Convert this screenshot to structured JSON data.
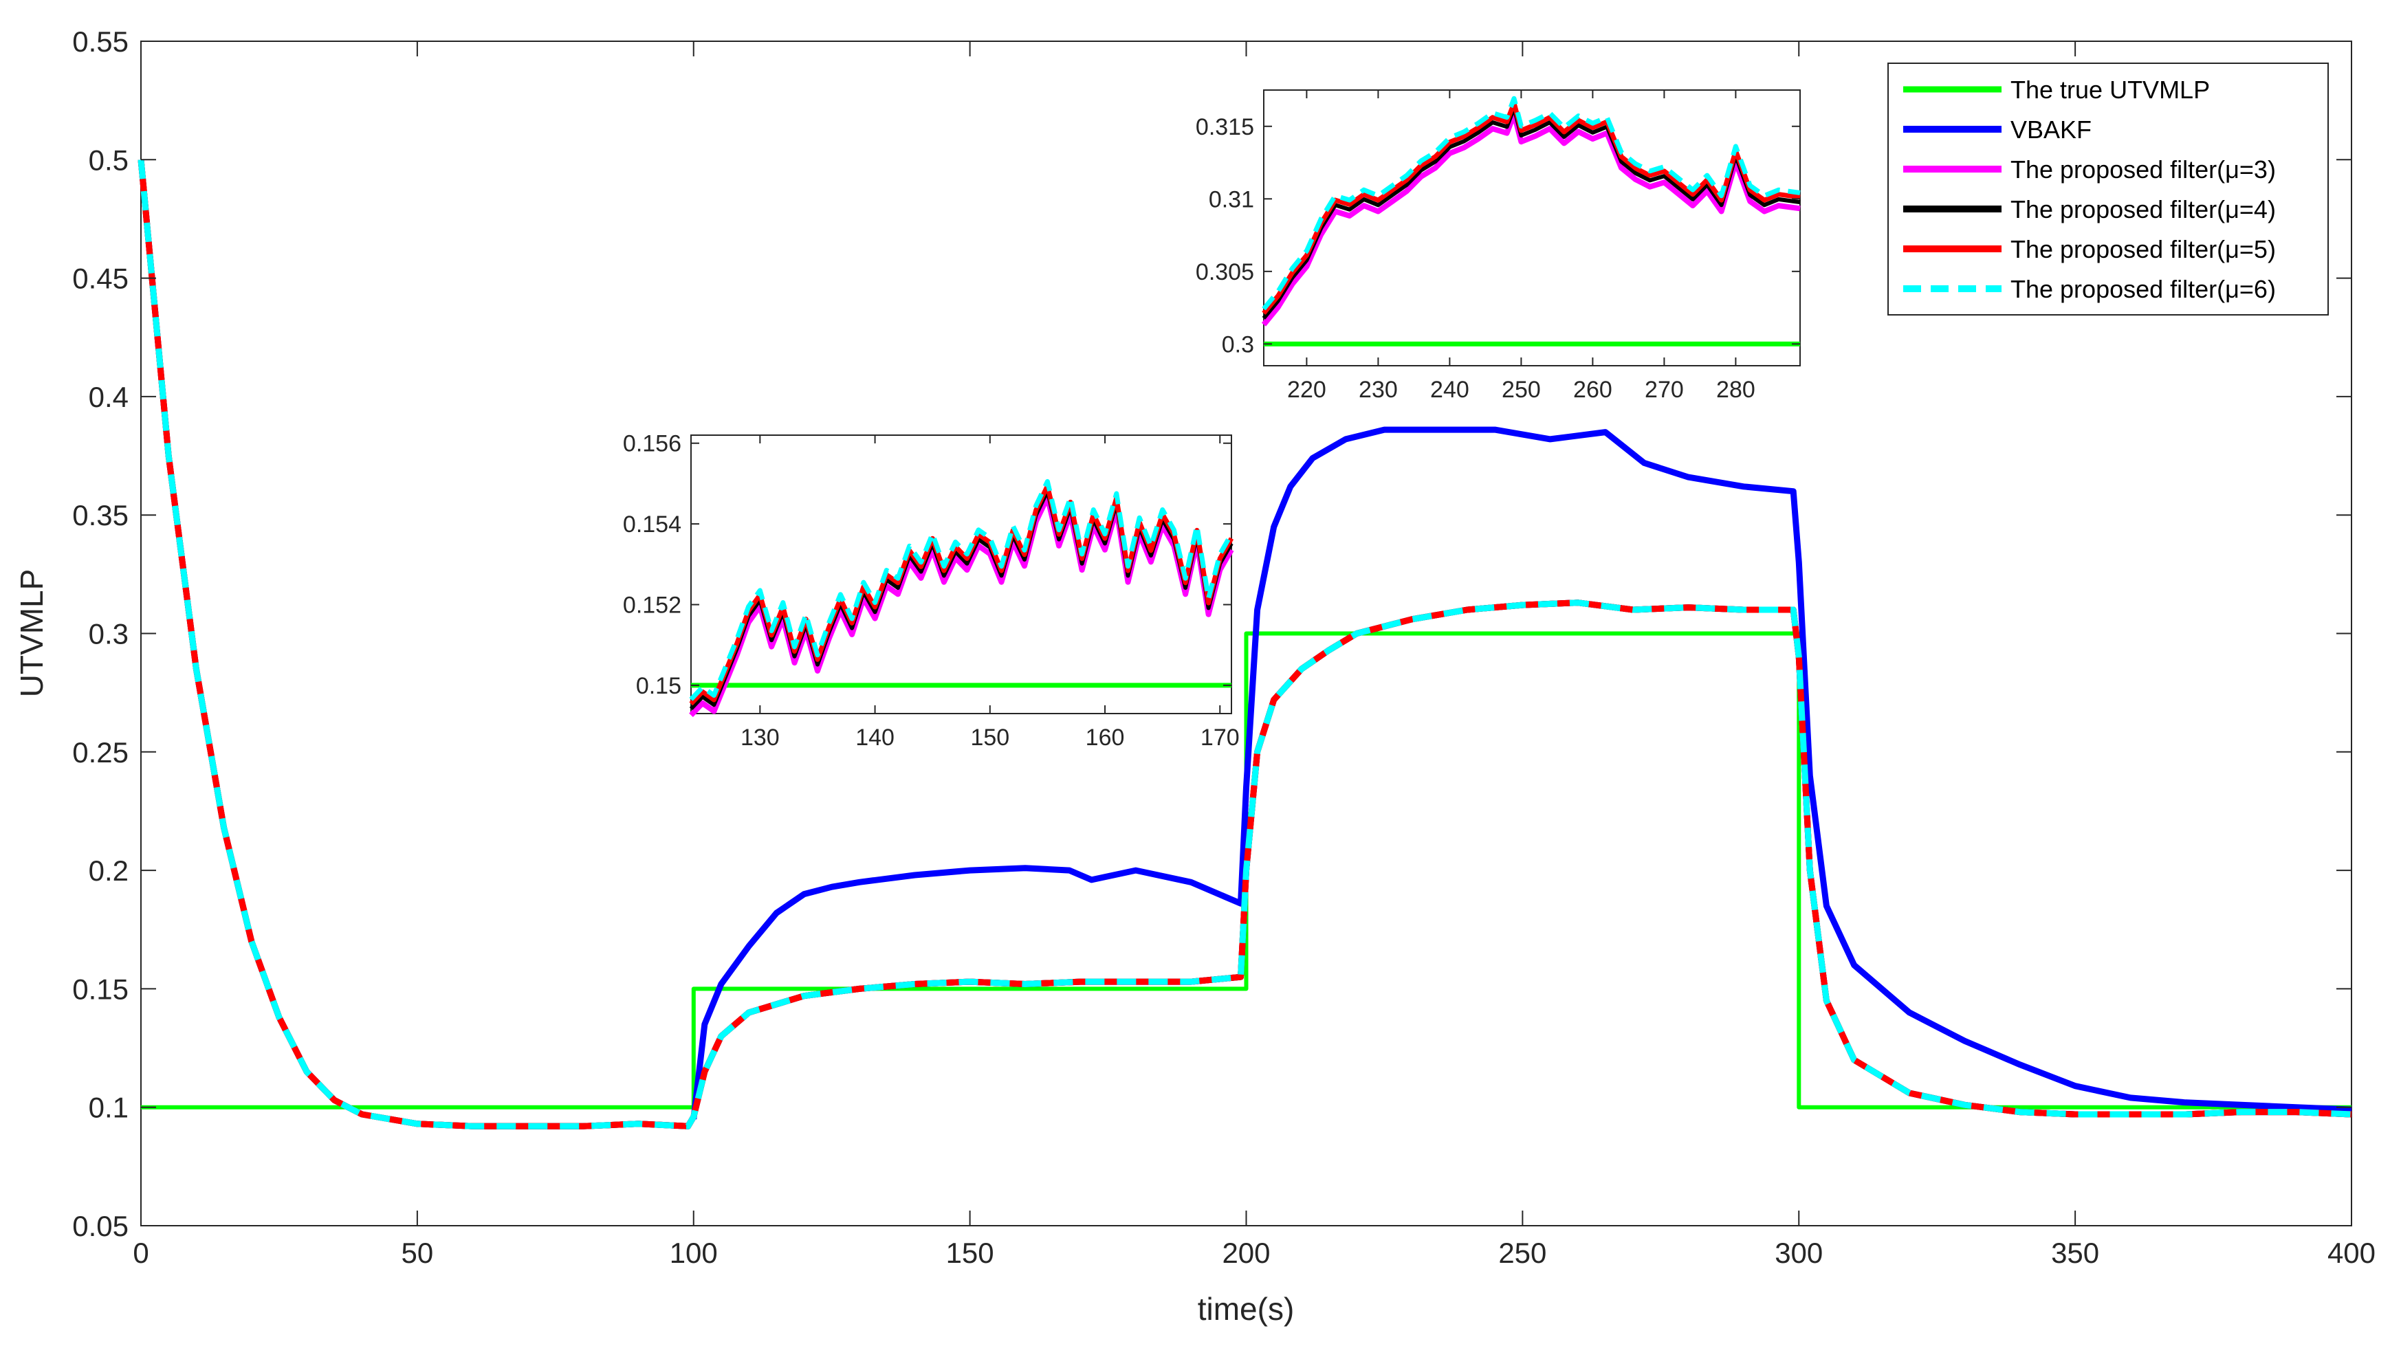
{
  "chart_data": {
    "type": "line",
    "xlabel": "time(s)",
    "ylabel": "UTVMLP",
    "xlim": [
      0,
      400
    ],
    "ylim": [
      0.05,
      0.55
    ],
    "xticks": [
      0,
      50,
      100,
      150,
      200,
      250,
      300,
      350,
      400
    ],
    "yticks": [
      0.05,
      0.1,
      0.15,
      0.2,
      0.25,
      0.3,
      0.35,
      0.4,
      0.45,
      0.5,
      0.55
    ],
    "xtick_labels": [
      "0",
      "50",
      "100",
      "150",
      "200",
      "250",
      "300",
      "350",
      "400"
    ],
    "ytick_labels": [
      "0.05",
      "0.1",
      "0.15",
      "0.2",
      "0.25",
      "0.3",
      "0.35",
      "0.4",
      "0.45",
      "0.5",
      "0.55"
    ],
    "legend_position": "top-right",
    "series": [
      {
        "name": "The true UTVMLP",
        "color": "#00ff00",
        "style": "solid",
        "x": [
          0,
          100,
          100,
          200,
          200,
          300,
          300,
          400
        ],
        "y": [
          0.1,
          0.1,
          0.15,
          0.15,
          0.3,
          0.3,
          0.1,
          0.1
        ]
      },
      {
        "name": "VBAKF",
        "color": "#0000ff",
        "style": "solid",
        "x": [
          100,
          102,
          105,
          110,
          115,
          120,
          125,
          130,
          140,
          150,
          160,
          168,
          172,
          180,
          190,
          199,
          200,
          202,
          205,
          208,
          212,
          218,
          225,
          235,
          245,
          255,
          265,
          272,
          280,
          290,
          299,
          300,
          302,
          305,
          310,
          320,
          330,
          340,
          350,
          360,
          370,
          380,
          390,
          400
        ],
        "y": [
          0.095,
          0.135,
          0.152,
          0.168,
          0.182,
          0.19,
          0.193,
          0.195,
          0.198,
          0.2,
          0.201,
          0.2,
          0.196,
          0.2,
          0.195,
          0.186,
          0.235,
          0.31,
          0.345,
          0.362,
          0.374,
          0.382,
          0.386,
          0.386,
          0.386,
          0.382,
          0.385,
          0.372,
          0.366,
          0.362,
          0.36,
          0.33,
          0.24,
          0.185,
          0.16,
          0.14,
          0.128,
          0.118,
          0.109,
          0.104,
          0.102,
          0.101,
          0.1,
          0.099
        ]
      },
      {
        "name": "The proposed filter(μ=3)",
        "color": "#ff00ff",
        "style": "solid",
        "x": [
          0,
          5,
          10,
          15,
          20,
          25,
          30,
          35,
          40,
          50,
          60,
          70,
          80,
          90,
          99,
          100,
          102,
          105,
          110,
          120,
          130,
          140,
          150,
          160,
          170,
          180,
          190,
          199,
          200,
          202,
          205,
          210,
          215,
          220,
          230,
          240,
          250,
          260,
          270,
          280,
          290,
          299,
          300,
          302,
          305,
          310,
          320,
          330,
          340,
          350,
          360,
          370,
          380,
          390,
          400
        ],
        "y": [
          0.5,
          0.375,
          0.285,
          0.218,
          0.17,
          0.138,
          0.115,
          0.103,
          0.097,
          0.093,
          0.092,
          0.092,
          0.092,
          0.093,
          0.092,
          0.096,
          0.115,
          0.13,
          0.14,
          0.147,
          0.15,
          0.152,
          0.153,
          0.152,
          0.153,
          0.153,
          0.153,
          0.155,
          0.2,
          0.25,
          0.272,
          0.285,
          0.293,
          0.3,
          0.306,
          0.31,
          0.312,
          0.313,
          0.31,
          0.311,
          0.31,
          0.31,
          0.29,
          0.2,
          0.145,
          0.12,
          0.106,
          0.101,
          0.098,
          0.097,
          0.097,
          0.097,
          0.098,
          0.098,
          0.097
        ]
      },
      {
        "name": "The proposed filter(μ=4)",
        "color": "#000000",
        "style": "solid",
        "x": [
          0,
          5,
          10,
          15,
          20,
          25,
          30,
          35,
          40,
          50,
          60,
          70,
          80,
          90,
          99,
          100,
          102,
          105,
          110,
          120,
          130,
          140,
          150,
          160,
          170,
          180,
          190,
          199,
          200,
          202,
          205,
          210,
          215,
          220,
          230,
          240,
          250,
          260,
          270,
          280,
          290,
          299,
          300,
          302,
          305,
          310,
          320,
          330,
          340,
          350,
          360,
          370,
          380,
          390,
          400
        ],
        "y": [
          0.5,
          0.375,
          0.285,
          0.218,
          0.17,
          0.138,
          0.115,
          0.103,
          0.097,
          0.093,
          0.092,
          0.092,
          0.092,
          0.093,
          0.092,
          0.096,
          0.115,
          0.13,
          0.14,
          0.147,
          0.15,
          0.152,
          0.153,
          0.152,
          0.153,
          0.153,
          0.153,
          0.155,
          0.2,
          0.25,
          0.272,
          0.285,
          0.293,
          0.3,
          0.306,
          0.31,
          0.312,
          0.313,
          0.31,
          0.311,
          0.31,
          0.31,
          0.29,
          0.2,
          0.145,
          0.12,
          0.106,
          0.101,
          0.098,
          0.097,
          0.097,
          0.097,
          0.098,
          0.098,
          0.097
        ]
      },
      {
        "name": "The proposed filter(μ=5)",
        "color": "#ff0000",
        "style": "solid",
        "x": [
          0,
          5,
          10,
          15,
          20,
          25,
          30,
          35,
          40,
          50,
          60,
          70,
          80,
          90,
          99,
          100,
          102,
          105,
          110,
          120,
          130,
          140,
          150,
          160,
          170,
          180,
          190,
          199,
          200,
          202,
          205,
          210,
          215,
          220,
          230,
          240,
          250,
          260,
          270,
          280,
          290,
          299,
          300,
          302,
          305,
          310,
          320,
          330,
          340,
          350,
          360,
          370,
          380,
          390,
          400
        ],
        "y": [
          0.5,
          0.375,
          0.285,
          0.218,
          0.17,
          0.138,
          0.115,
          0.103,
          0.097,
          0.093,
          0.092,
          0.092,
          0.092,
          0.093,
          0.092,
          0.096,
          0.115,
          0.13,
          0.14,
          0.147,
          0.15,
          0.152,
          0.153,
          0.152,
          0.153,
          0.153,
          0.153,
          0.155,
          0.2,
          0.25,
          0.272,
          0.285,
          0.293,
          0.3,
          0.306,
          0.31,
          0.312,
          0.313,
          0.31,
          0.311,
          0.31,
          0.31,
          0.29,
          0.2,
          0.145,
          0.12,
          0.106,
          0.101,
          0.098,
          0.097,
          0.097,
          0.097,
          0.098,
          0.098,
          0.097
        ]
      },
      {
        "name": "The proposed filter(μ=6)",
        "color": "#00ffff",
        "style": "dashed",
        "x": [
          0,
          5,
          10,
          15,
          20,
          25,
          30,
          35,
          40,
          50,
          60,
          70,
          80,
          90,
          99,
          100,
          102,
          105,
          110,
          120,
          130,
          140,
          150,
          160,
          170,
          180,
          190,
          199,
          200,
          202,
          205,
          210,
          215,
          220,
          230,
          240,
          250,
          260,
          270,
          280,
          290,
          299,
          300,
          302,
          305,
          310,
          320,
          330,
          340,
          350,
          360,
          370,
          380,
          390,
          400
        ],
        "y": [
          0.5,
          0.375,
          0.285,
          0.218,
          0.17,
          0.138,
          0.115,
          0.103,
          0.097,
          0.093,
          0.092,
          0.092,
          0.092,
          0.093,
          0.092,
          0.096,
          0.115,
          0.13,
          0.14,
          0.147,
          0.15,
          0.152,
          0.153,
          0.152,
          0.153,
          0.153,
          0.153,
          0.155,
          0.2,
          0.25,
          0.272,
          0.285,
          0.293,
          0.3,
          0.306,
          0.31,
          0.312,
          0.313,
          0.31,
          0.311,
          0.31,
          0.31,
          0.29,
          0.2,
          0.145,
          0.12,
          0.106,
          0.101,
          0.098,
          0.097,
          0.097,
          0.097,
          0.098,
          0.098,
          0.097
        ]
      }
    ],
    "insets": [
      {
        "name": "inset-1",
        "xlim": [
          124,
          171
        ],
        "ylim": [
          0.1493,
          0.1562
        ],
        "xticks": [
          130,
          140,
          150,
          160,
          170
        ],
        "yticks": [
          0.15,
          0.152,
          0.154,
          0.156
        ],
        "xtick_labels": [
          "130",
          "140",
          "150",
          "160",
          "170"
        ],
        "ytick_labels": [
          "0.15",
          "0.152",
          "0.154",
          "0.156"
        ],
        "true_value": 0.15,
        "filter_x": [
          124,
          125,
          126,
          127,
          128,
          129,
          130,
          131,
          132,
          133,
          134,
          135,
          136,
          137,
          138,
          139,
          140,
          141,
          142,
          143,
          144,
          145,
          146,
          147,
          148,
          149,
          150,
          151,
          152,
          153,
          154,
          155,
          156,
          157,
          158,
          159,
          160,
          161,
          162,
          163,
          164,
          165,
          166,
          167,
          168,
          169,
          170,
          171
        ],
        "filter_y": [
          0.1495,
          0.1498,
          0.1496,
          0.1503,
          0.151,
          0.1518,
          0.1522,
          0.1512,
          0.1519,
          0.1508,
          0.1516,
          0.1506,
          0.1514,
          0.1521,
          0.1515,
          0.1524,
          0.1519,
          0.1527,
          0.1525,
          0.1533,
          0.1529,
          0.1536,
          0.1528,
          0.1534,
          0.1531,
          0.1537,
          0.1535,
          0.1528,
          0.1538,
          0.1532,
          0.1543,
          0.1549,
          0.1537,
          0.1545,
          0.1531,
          0.1542,
          0.1536,
          0.1546,
          0.1528,
          0.154,
          0.1533,
          0.1542,
          0.1537,
          0.1525,
          0.1538,
          0.152,
          0.1531,
          0.1536
        ]
      },
      {
        "name": "inset-2",
        "xlim": [
          214,
          289
        ],
        "ylim": [
          0.2985,
          0.3175
        ],
        "xticks": [
          220,
          230,
          240,
          250,
          260,
          270,
          280
        ],
        "yticks": [
          0.3,
          0.305,
          0.31,
          0.315
        ],
        "xtick_labels": [
          "220",
          "230",
          "240",
          "250",
          "260",
          "270",
          "280"
        ],
        "ytick_labels": [
          "0.3",
          "0.305",
          "0.31",
          "0.315"
        ],
        "true_value": 0.3,
        "filter_x": [
          214,
          216,
          218,
          220,
          222,
          224,
          226,
          228,
          230,
          232,
          234,
          236,
          238,
          240,
          242,
          244,
          246,
          248,
          249,
          250,
          252,
          254,
          256,
          258,
          260,
          262,
          264,
          266,
          268,
          270,
          272,
          274,
          276,
          278,
          280,
          282,
          284,
          286,
          289
        ],
        "filter_y": [
          0.302,
          0.3032,
          0.3048,
          0.306,
          0.3082,
          0.3098,
          0.3095,
          0.3102,
          0.3098,
          0.3105,
          0.3112,
          0.3122,
          0.3128,
          0.3138,
          0.3142,
          0.3148,
          0.3155,
          0.3152,
          0.3165,
          0.3146,
          0.315,
          0.3155,
          0.3145,
          0.3153,
          0.3148,
          0.3152,
          0.3128,
          0.312,
          0.3115,
          0.3118,
          0.311,
          0.3102,
          0.3112,
          0.3098,
          0.3132,
          0.3105,
          0.3098,
          0.3102,
          0.31
        ]
      }
    ]
  }
}
